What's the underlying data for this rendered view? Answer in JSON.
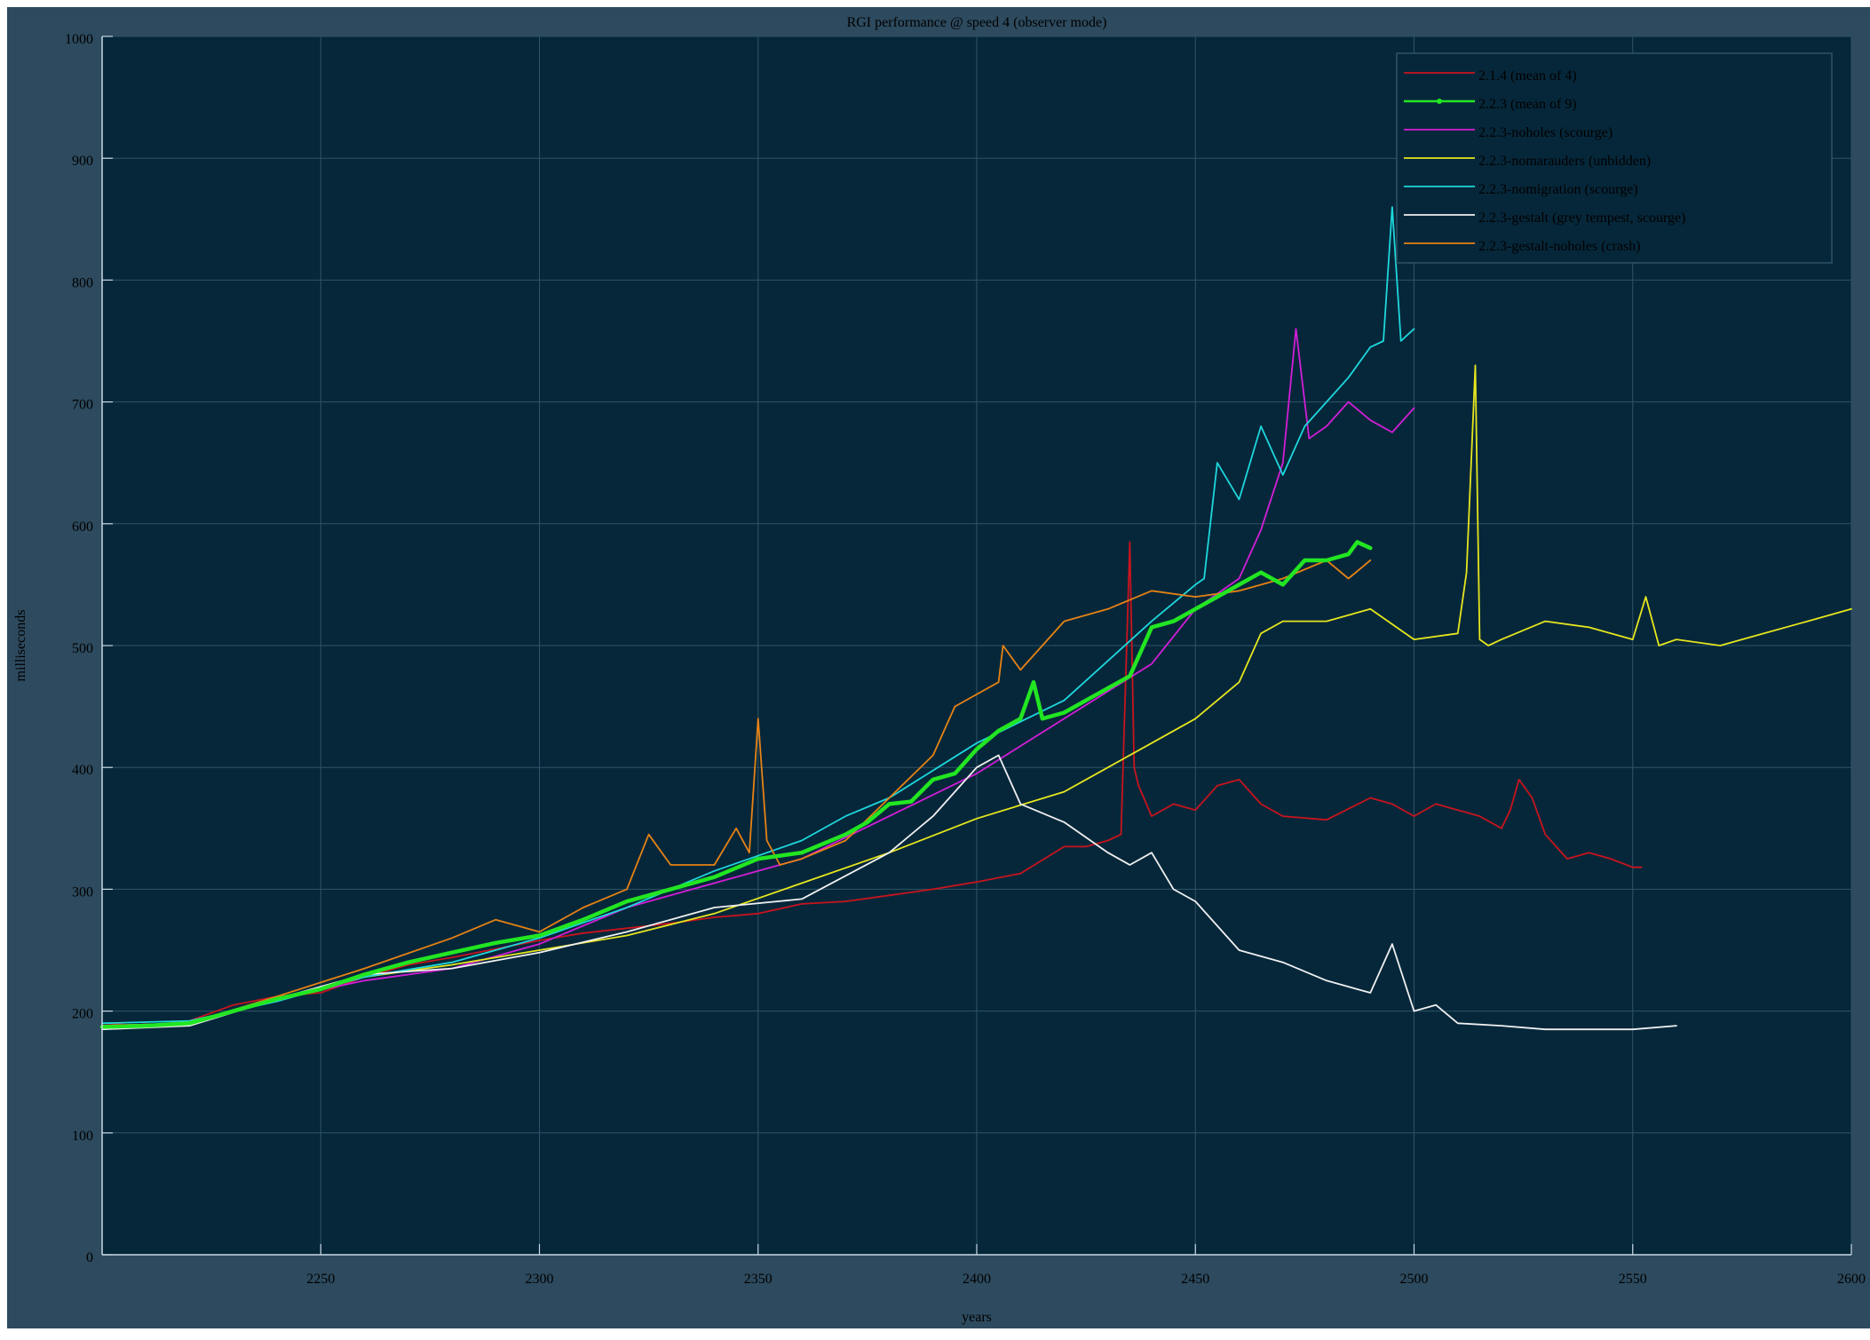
{
  "chart_data": {
    "type": "line",
    "title": "RGI performance @ speed 4 (observer mode)",
    "xlabel": "years",
    "ylabel": "milliseconds",
    "xlim": [
      2200,
      2600
    ],
    "ylim": [
      0,
      1000
    ],
    "xticks": [
      2250,
      2300,
      2350,
      2400,
      2450,
      2500,
      2550,
      2600
    ],
    "yticks": [
      0,
      100,
      200,
      300,
      400,
      500,
      600,
      700,
      800,
      900,
      1000
    ],
    "grid": true,
    "legend_position": "top-right",
    "background": "#06273a",
    "series": [
      {
        "name": "2.1.4 (mean of 4)",
        "color": "#c8141e",
        "width": 1.8,
        "x": [
          2200,
          2210,
          2220,
          2230,
          2240,
          2250,
          2260,
          2270,
          2280,
          2290,
          2300,
          2310,
          2320,
          2330,
          2340,
          2350,
          2360,
          2370,
          2380,
          2390,
          2400,
          2410,
          2420,
          2425,
          2430,
          2433,
          2435,
          2436,
          2437,
          2440,
          2445,
          2450,
          2455,
          2460,
          2465,
          2470,
          2480,
          2490,
          2495,
          2500,
          2505,
          2510,
          2515,
          2520,
          2522,
          2524,
          2527,
          2530,
          2535,
          2540,
          2545,
          2550,
          2552
        ],
        "y": [
          190,
          188,
          192,
          205,
          212,
          215,
          228,
          238,
          244,
          251,
          258,
          264,
          268,
          272,
          277,
          280,
          288,
          290,
          295,
          300,
          306,
          313,
          335,
          335,
          340,
          345,
          585,
          400,
          385,
          360,
          370,
          365,
          385,
          390,
          370,
          360,
          357,
          375,
          370,
          360,
          370,
          365,
          360,
          350,
          365,
          390,
          375,
          345,
          325,
          330,
          325,
          318,
          318
        ]
      },
      {
        "name": "2.2.3 (mean of 9)",
        "color": "#22e622",
        "width": 4.5,
        "marker": true,
        "x": [
          2200,
          2210,
          2220,
          2230,
          2240,
          2250,
          2260,
          2270,
          2280,
          2290,
          2300,
          2310,
          2320,
          2330,
          2340,
          2350,
          2360,
          2370,
          2375,
          2380,
          2385,
          2390,
          2395,
          2400,
          2405,
          2410,
          2413,
          2415,
          2420,
          2425,
          2430,
          2435,
          2440,
          2445,
          2450,
          2455,
          2460,
          2465,
          2470,
          2475,
          2480,
          2485,
          2487,
          2490
        ],
        "y": [
          187,
          188,
          190,
          200,
          210,
          218,
          230,
          240,
          248,
          256,
          262,
          275,
          290,
          300,
          310,
          325,
          330,
          345,
          355,
          370,
          372,
          390,
          395,
          415,
          430,
          440,
          470,
          440,
          445,
          455,
          465,
          475,
          515,
          520,
          530,
          540,
          550,
          560,
          550,
          570,
          570,
          575,
          585,
          580
        ]
      },
      {
        "name": "2.2.3-noholes (scourge)",
        "color": "#d21ed7",
        "width": 1.8,
        "x": [
          2200,
          2220,
          2240,
          2260,
          2280,
          2300,
          2320,
          2340,
          2360,
          2380,
          2400,
          2420,
          2440,
          2450,
          2460,
          2465,
          2470,
          2473,
          2476,
          2480,
          2485,
          2490,
          2495,
          2500
        ],
        "y": [
          188,
          190,
          210,
          225,
          235,
          255,
          285,
          305,
          325,
          360,
          395,
          440,
          485,
          530,
          555,
          595,
          650,
          760,
          670,
          680,
          700,
          685,
          675,
          695
        ]
      },
      {
        "name": "2.2.3-nomarauders (unbidden)",
        "color": "#e6e61e",
        "width": 1.8,
        "x": [
          2200,
          2220,
          2240,
          2260,
          2280,
          2300,
          2320,
          2340,
          2360,
          2380,
          2400,
          2420,
          2430,
          2440,
          2450,
          2460,
          2465,
          2470,
          2480,
          2490,
          2500,
          2510,
          2512,
          2514,
          2515,
          2517,
          2520,
          2530,
          2540,
          2550,
          2553,
          2556,
          2560,
          2570,
          2580,
          2590,
          2600
        ],
        "y": [
          188,
          190,
          210,
          228,
          238,
          250,
          262,
          280,
          305,
          330,
          358,
          380,
          400,
          420,
          440,
          470,
          510,
          520,
          520,
          530,
          505,
          510,
          560,
          730,
          505,
          500,
          505,
          520,
          515,
          505,
          540,
          500,
          505,
          500,
          510,
          520,
          530
        ]
      },
      {
        "name": "2.2.3-nomigration (scourge)",
        "color": "#1ed7dc",
        "width": 1.8,
        "x": [
          2200,
          2220,
          2240,
          2260,
          2280,
          2300,
          2320,
          2340,
          2360,
          2370,
          2380,
          2400,
          2420,
          2440,
          2450,
          2452,
          2455,
          2460,
          2465,
          2470,
          2475,
          2480,
          2485,
          2490,
          2493,
          2495,
          2497,
          2500
        ],
        "y": [
          190,
          192,
          208,
          228,
          240,
          260,
          285,
          315,
          340,
          360,
          375,
          420,
          455,
          520,
          550,
          555,
          650,
          620,
          680,
          640,
          680,
          700,
          720,
          745,
          750,
          860,
          750,
          760
        ]
      },
      {
        "name": "2.2.3-gestalt (grey tempest, scourge)",
        "color": "#f0f0f0",
        "width": 1.8,
        "x": [
          2200,
          2220,
          2240,
          2260,
          2280,
          2300,
          2320,
          2340,
          2360,
          2380,
          2390,
          2400,
          2405,
          2410,
          2420,
          2430,
          2435,
          2440,
          2445,
          2450,
          2460,
          2470,
          2480,
          2490,
          2495,
          2500,
          2505,
          2510,
          2520,
          2530,
          2540,
          2550,
          2560
        ],
        "y": [
          185,
          188,
          210,
          230,
          235,
          248,
          265,
          285,
          292,
          330,
          360,
          400,
          410,
          370,
          355,
          330,
          320,
          330,
          300,
          290,
          250,
          240,
          225,
          215,
          255,
          200,
          205,
          190,
          188,
          185,
          185,
          185,
          188
        ]
      },
      {
        "name": "2.2.3-gestalt-noholes (crash)",
        "color": "#e68214",
        "width": 1.8,
        "x": [
          2200,
          2220,
          2240,
          2260,
          2280,
          2290,
          2300,
          2310,
          2320,
          2325,
          2330,
          2340,
          2345,
          2348,
          2350,
          2352,
          2355,
          2360,
          2370,
          2380,
          2390,
          2395,
          2400,
          2405,
          2406,
          2410,
          2420,
          2430,
          2440,
          2450,
          2460,
          2470,
          2480,
          2485,
          2490
        ],
        "y": [
          188,
          190,
          212,
          235,
          260,
          275,
          265,
          285,
          300,
          345,
          320,
          320,
          350,
          330,
          440,
          340,
          320,
          325,
          340,
          375,
          410,
          450,
          460,
          470,
          500,
          480,
          520,
          530,
          545,
          540,
          545,
          555,
          570,
          555,
          570
        ]
      }
    ]
  }
}
